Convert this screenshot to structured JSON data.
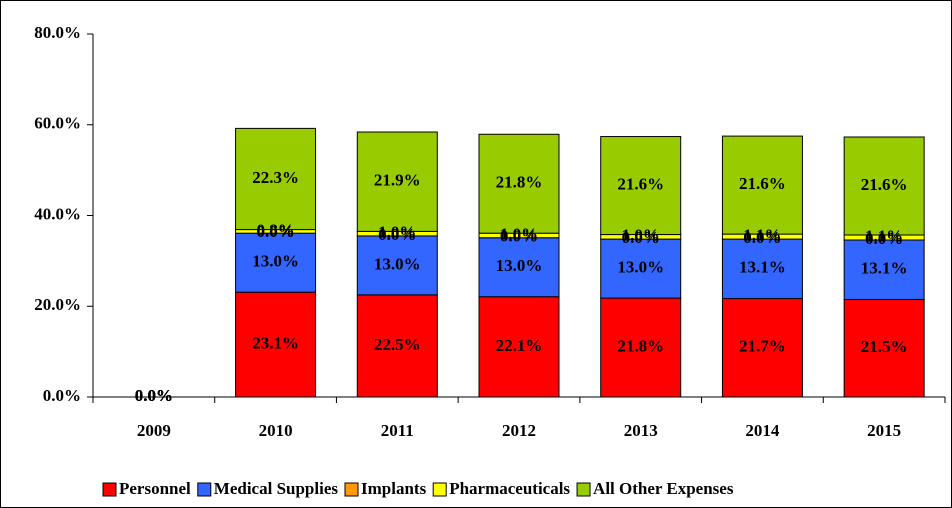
{
  "chart_data": {
    "type": "stacked_bar",
    "categories": [
      "2009",
      "2010",
      "2011",
      "2012",
      "2013",
      "2014",
      "2015"
    ],
    "series": [
      {
        "name": "Personnel",
        "color": "#ff0000",
        "values": [
          0,
          23.1,
          22.5,
          22.1,
          21.8,
          21.7,
          21.5
        ],
        "value_labels": [
          "0.0%",
          "23.1%",
          "22.5%",
          "22.1%",
          "21.8%",
          "21.7%",
          "21.5%"
        ]
      },
      {
        "name": "Medical Supplies",
        "color": "#3366ff",
        "values": [
          0,
          13.0,
          13.0,
          13.0,
          13.0,
          13.1,
          13.1
        ],
        "value_labels": [
          "0.0%",
          "13.0%",
          "13.0%",
          "13.0%",
          "13.0%",
          "13.1%",
          "13.1%"
        ]
      },
      {
        "name": "Implants",
        "color": "#ff9900",
        "values": [
          0,
          0.0,
          0.0,
          0.0,
          0.0,
          0.0,
          0.0
        ],
        "value_labels": [
          "0.0%",
          "0.0%",
          "0.0%",
          "0.0%",
          "0.0%",
          "0.0%",
          "0.0%"
        ]
      },
      {
        "name": "Pharmaceuticals",
        "color": "#ffff00",
        "values": [
          0,
          0.8,
          1.0,
          1.0,
          1.0,
          1.1,
          1.1
        ],
        "value_labels": [
          "0.0%",
          "0.8%",
          "1.0%",
          "1.0%",
          "1.0%",
          "1.1%",
          "1.1%"
        ]
      },
      {
        "name": "All Other Expenses",
        "color": "#99cc00",
        "values": [
          0,
          22.3,
          21.9,
          21.8,
          21.6,
          21.6,
          21.6
        ],
        "value_labels": [
          "0.0%",
          "22.3%",
          "21.9%",
          "21.8%",
          "21.6%",
          "21.6%",
          "21.6%"
        ]
      }
    ],
    "ylim": [
      0,
      80
    ],
    "yticks": [
      {
        "value": 0,
        "label": "0.0%"
      },
      {
        "value": 20,
        "label": "20.0%"
      },
      {
        "value": 40,
        "label": "40.0%"
      },
      {
        "value": 60,
        "label": "60.0%"
      },
      {
        "value": 80,
        "label": "80.0%"
      }
    ],
    "grid": false,
    "legend": "bottom"
  }
}
